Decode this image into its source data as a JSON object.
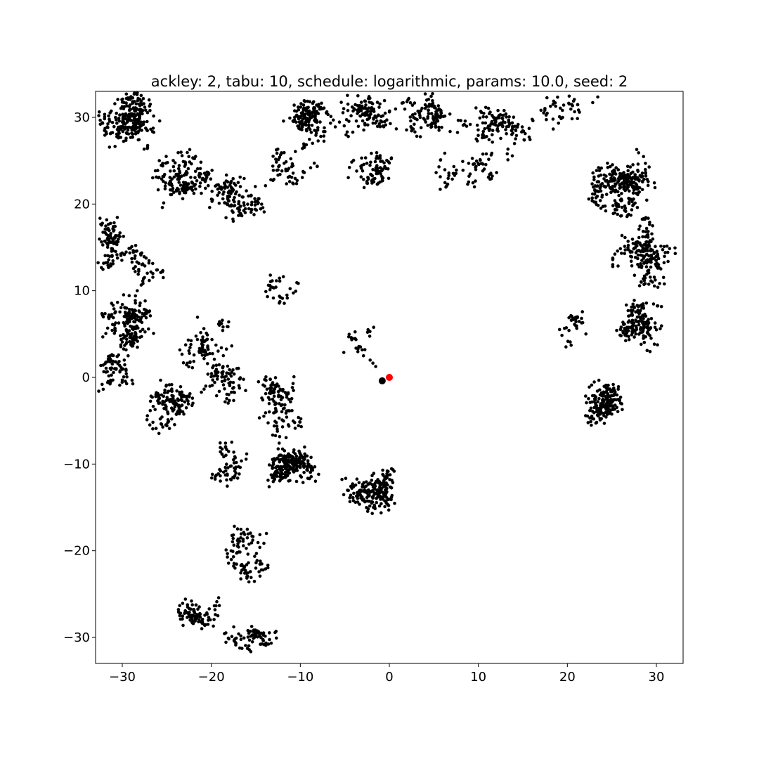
{
  "chart_data": {
    "type": "scatter",
    "title": "ackley: 2, tabu: 10, schedule: logarithmic, params: 10.0, seed: 2",
    "xlabel": "",
    "ylabel": "",
    "xlim": [
      -33,
      33
    ],
    "ylim": [
      -33,
      33
    ],
    "xticks": [
      -30,
      -20,
      -10,
      0,
      10,
      20,
      30
    ],
    "yticks": [
      -30,
      -20,
      -10,
      0,
      10,
      20,
      30
    ],
    "xtick_labels": [
      "−30",
      "−20",
      "−10",
      "0",
      "10",
      "20",
      "30"
    ],
    "ytick_labels": [
      "−30",
      "−20",
      "−10",
      "0",
      "10",
      "20",
      "30"
    ],
    "grid": false,
    "colors": {
      "trajectory": "#000000",
      "best": "#000000",
      "optimum": "#ff0000"
    },
    "series": [
      {
        "role": "trajectory",
        "clusters": [
          {
            "cx": -29,
            "cy": 29,
            "rx": 4,
            "ry": 4,
            "n": 260
          },
          {
            "cx": -23,
            "cy": 23,
            "rx": 4,
            "ry": 4,
            "n": 160
          },
          {
            "cx": -17,
            "cy": 21,
            "rx": 4,
            "ry": 3,
            "n": 120
          },
          {
            "cx": -12,
            "cy": 24,
            "rx": 3,
            "ry": 4,
            "n": 60
          },
          {
            "cx": -8,
            "cy": 30,
            "rx": 4,
            "ry": 3,
            "n": 150
          },
          {
            "cx": -2,
            "cy": 30,
            "rx": 4,
            "ry": 3,
            "n": 110
          },
          {
            "cx": -2,
            "cy": 24,
            "rx": 3,
            "ry": 3,
            "n": 80
          },
          {
            "cx": 5,
            "cy": 30,
            "rx": 5,
            "ry": 3,
            "n": 120
          },
          {
            "cx": 12,
            "cy": 29,
            "rx": 5,
            "ry": 3,
            "n": 120
          },
          {
            "cx": 9,
            "cy": 24,
            "rx": 5,
            "ry": 3,
            "n": 60
          },
          {
            "cx": 20,
            "cy": 31,
            "rx": 4,
            "ry": 2,
            "n": 40
          },
          {
            "cx": -31,
            "cy": 16,
            "rx": 2,
            "ry": 5,
            "n": 90
          },
          {
            "cx": -28,
            "cy": 13,
            "rx": 2,
            "ry": 4,
            "n": 50
          },
          {
            "cx": -29,
            "cy": 6,
            "rx": 3,
            "ry": 4,
            "n": 170
          },
          {
            "cx": -31,
            "cy": 2,
            "rx": 2,
            "ry": 3,
            "n": 70
          },
          {
            "cx": -25,
            "cy": -3,
            "rx": 3,
            "ry": 3,
            "n": 130
          },
          {
            "cx": -21,
            "cy": 4,
            "rx": 3,
            "ry": 4,
            "n": 80
          },
          {
            "cx": -18,
            "cy": 0,
            "rx": 3,
            "ry": 4,
            "n": 80
          },
          {
            "cx": -12,
            "cy": -3,
            "rx": 3,
            "ry": 4,
            "n": 110
          },
          {
            "cx": -11,
            "cy": -10,
            "rx": 4,
            "ry": 3,
            "n": 220
          },
          {
            "cx": -18,
            "cy": -10,
            "rx": 3,
            "ry": 3,
            "n": 60
          },
          {
            "cx": -16,
            "cy": -20,
            "rx": 4,
            "ry": 4,
            "n": 90
          },
          {
            "cx": -22,
            "cy": -27,
            "rx": 4,
            "ry": 2,
            "n": 90
          },
          {
            "cx": -16,
            "cy": -30,
            "rx": 3,
            "ry": 2,
            "n": 70
          },
          {
            "cx": -2,
            "cy": -13,
            "rx": 4,
            "ry": 3,
            "n": 200
          },
          {
            "cx": -12,
            "cy": 10,
            "rx": 3,
            "ry": 2,
            "n": 30
          },
          {
            "cx": -4,
            "cy": 4,
            "rx": 3,
            "ry": 3,
            "n": 25
          },
          {
            "cx": 27,
            "cy": 22,
            "rx": 4,
            "ry": 4,
            "n": 210
          },
          {
            "cx": 24,
            "cy": 22,
            "rx": 3,
            "ry": 3,
            "n": 60
          },
          {
            "cx": 29,
            "cy": 14,
            "rx": 3,
            "ry": 5,
            "n": 190
          },
          {
            "cx": 28,
            "cy": 6,
            "rx": 3,
            "ry": 4,
            "n": 150
          },
          {
            "cx": 24,
            "cy": -3,
            "rx": 3,
            "ry": 3,
            "n": 170
          },
          {
            "cx": 21,
            "cy": 6,
            "rx": 2,
            "ry": 4,
            "n": 30
          }
        ]
      },
      {
        "role": "best",
        "points": [
          [
            -0.8,
            -0.4
          ]
        ]
      },
      {
        "role": "optimum",
        "points": [
          [
            0,
            0
          ]
        ]
      }
    ]
  }
}
